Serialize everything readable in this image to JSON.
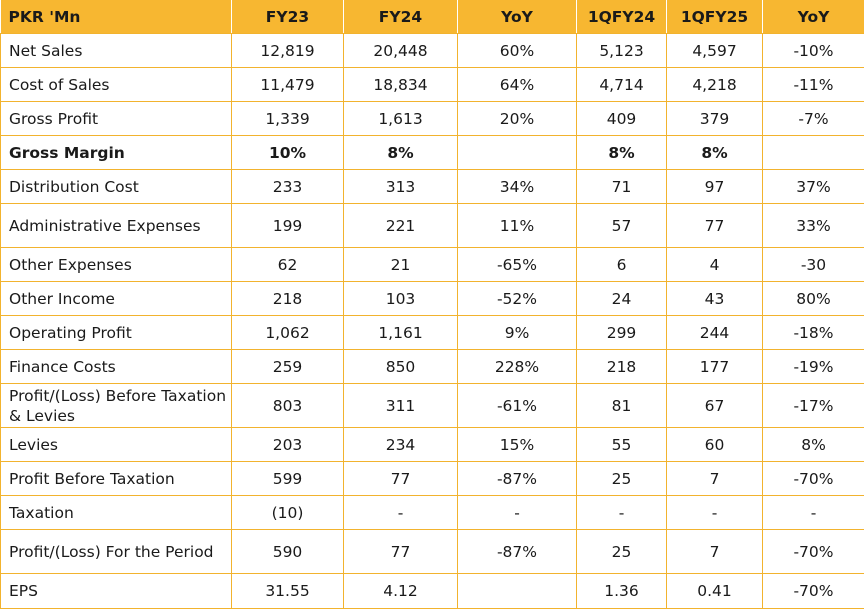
{
  "header": [
    "PKR 'Mn",
    "FY23",
    "FY24",
    "YoY",
    "1QFY24",
    "1QFY25",
    "YoY"
  ],
  "rows": [
    {
      "label": "Net Sales",
      "cells": [
        "12,819",
        "20,448",
        "60%",
        "5,123",
        "4,597",
        "-10%"
      ]
    },
    {
      "label": "Cost of Sales",
      "cells": [
        "11,479",
        "18,834",
        "64%",
        "4,714",
        "4,218",
        "-11%"
      ]
    },
    {
      "label": "Gross Profit",
      "cells": [
        "1,339",
        "1,613",
        "20%",
        "409",
        "379",
        "-7%"
      ]
    },
    {
      "label": "Gross Margin",
      "cells": [
        "10%",
        "8%",
        "",
        "8%",
        "8%",
        ""
      ]
    },
    {
      "label": "Distribution Cost",
      "cells": [
        "233",
        "313",
        "34%",
        "71",
        "97",
        "37%"
      ]
    },
    {
      "label": "Administrative Expenses",
      "cells": [
        "199",
        "221",
        "11%",
        "57",
        "77",
        "33%"
      ]
    },
    {
      "label": "Other Expenses",
      "cells": [
        "62",
        "21",
        "-65%",
        "6",
        "4",
        "-30"
      ]
    },
    {
      "label": "Other Income",
      "cells": [
        "218",
        "103",
        "-52%",
        "24",
        "43",
        "80%"
      ]
    },
    {
      "label": "Operating Profit",
      "cells": [
        "1,062",
        "1,161",
        "9%",
        "299",
        "244",
        "-18%"
      ]
    },
    {
      "label": "Finance Costs",
      "cells": [
        "259",
        "850",
        "228%",
        "218",
        "177",
        "-19%"
      ]
    },
    {
      "label": "Profit/(Loss) Before Taxation & Levies",
      "cells": [
        "803",
        "311",
        "-61%",
        "81",
        "67",
        "-17%"
      ]
    },
    {
      "label": "Levies",
      "cells": [
        "203",
        "234",
        "15%",
        "55",
        "60",
        "8%"
      ]
    },
    {
      "label": "Profit Before Taxation",
      "cells": [
        "599",
        "77",
        "-87%",
        "25",
        "7",
        "-70%"
      ]
    },
    {
      "label": "Taxation",
      "cells": [
        "(10)",
        "-",
        "-",
        "-",
        "-",
        "-"
      ]
    },
    {
      "label": "Profit/(Loss) For the Period",
      "cells": [
        "590",
        "77",
        "-87%",
        "25",
        "7",
        "-70%"
      ]
    },
    {
      "label": "EPS",
      "cells": [
        "31.55",
        "4.12",
        "",
        "1.36",
        "0.41",
        "-70%"
      ]
    }
  ],
  "colors": {
    "header_bg": "#F7B731",
    "border": "#F2B32E",
    "text": "#1a1a1a"
  }
}
